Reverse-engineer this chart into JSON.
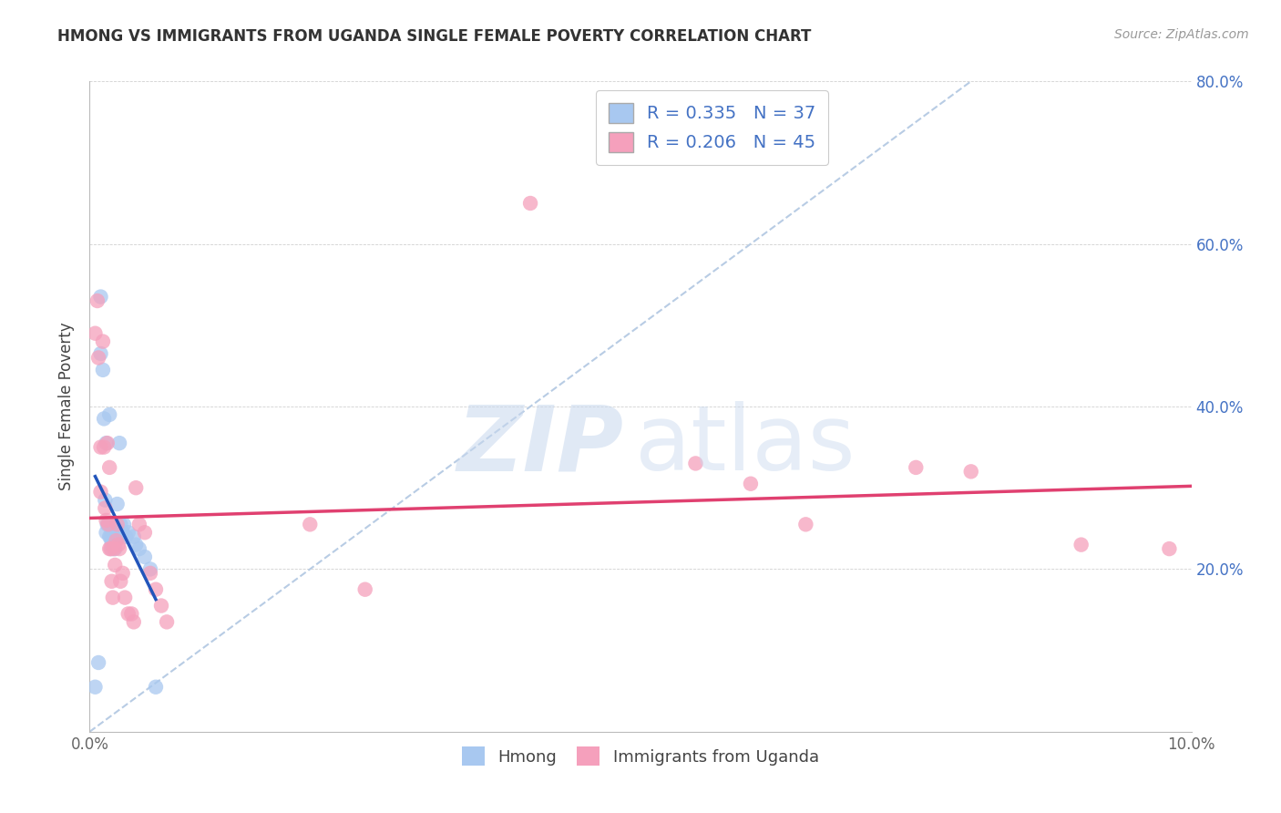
{
  "title": "HMONG VS IMMIGRANTS FROM UGANDA SINGLE FEMALE POVERTY CORRELATION CHART",
  "source": "Source: ZipAtlas.com",
  "xlabel": "",
  "ylabel": "Single Female Poverty",
  "xlim": [
    0,
    0.1
  ],
  "ylim": [
    0,
    0.8
  ],
  "xticks": [
    0.0,
    0.02,
    0.04,
    0.06,
    0.08,
    0.1
  ],
  "yticks": [
    0.0,
    0.2,
    0.4,
    0.6,
    0.8
  ],
  "hmong_R": 0.335,
  "hmong_N": 37,
  "uganda_R": 0.206,
  "uganda_N": 45,
  "hmong_color": "#A8C8F0",
  "uganda_color": "#F5A0BC",
  "hmong_line_color": "#2255BB",
  "uganda_line_color": "#E04070",
  "ref_line_color": "#B8CCE4",
  "hmong_x": [
    0.0005,
    0.0008,
    0.001,
    0.001,
    0.0012,
    0.0013,
    0.0014,
    0.0015,
    0.0015,
    0.0016,
    0.0017,
    0.0018,
    0.0018,
    0.0019,
    0.002,
    0.002,
    0.002,
    0.0021,
    0.0021,
    0.0022,
    0.0022,
    0.0023,
    0.0024,
    0.0025,
    0.0026,
    0.0027,
    0.0028,
    0.003,
    0.0031,
    0.0033,
    0.0035,
    0.004,
    0.0042,
    0.0045,
    0.005,
    0.0055,
    0.006
  ],
  "hmong_y": [
    0.055,
    0.085,
    0.535,
    0.465,
    0.445,
    0.385,
    0.285,
    0.355,
    0.245,
    0.255,
    0.255,
    0.39,
    0.24,
    0.24,
    0.235,
    0.23,
    0.225,
    0.24,
    0.245,
    0.245,
    0.23,
    0.225,
    0.235,
    0.28,
    0.24,
    0.355,
    0.255,
    0.245,
    0.255,
    0.24,
    0.245,
    0.24,
    0.23,
    0.225,
    0.215,
    0.2,
    0.055
  ],
  "uganda_x": [
    0.0005,
    0.0007,
    0.0008,
    0.001,
    0.001,
    0.0012,
    0.0013,
    0.0014,
    0.0015,
    0.0016,
    0.0017,
    0.0018,
    0.0018,
    0.0019,
    0.002,
    0.0021,
    0.0022,
    0.0023,
    0.0024,
    0.0025,
    0.0026,
    0.0027,
    0.0028,
    0.003,
    0.0032,
    0.0035,
    0.0038,
    0.004,
    0.0042,
    0.0045,
    0.005,
    0.0055,
    0.006,
    0.0065,
    0.007,
    0.02,
    0.025,
    0.04,
    0.055,
    0.06,
    0.065,
    0.075,
    0.08,
    0.09,
    0.098
  ],
  "uganda_y": [
    0.49,
    0.53,
    0.46,
    0.35,
    0.295,
    0.48,
    0.35,
    0.275,
    0.26,
    0.355,
    0.255,
    0.225,
    0.325,
    0.225,
    0.185,
    0.165,
    0.225,
    0.205,
    0.235,
    0.255,
    0.23,
    0.225,
    0.185,
    0.195,
    0.165,
    0.145,
    0.145,
    0.135,
    0.3,
    0.255,
    0.245,
    0.195,
    0.175,
    0.155,
    0.135,
    0.255,
    0.175,
    0.65,
    0.33,
    0.305,
    0.255,
    0.325,
    0.32,
    0.23,
    0.225
  ]
}
